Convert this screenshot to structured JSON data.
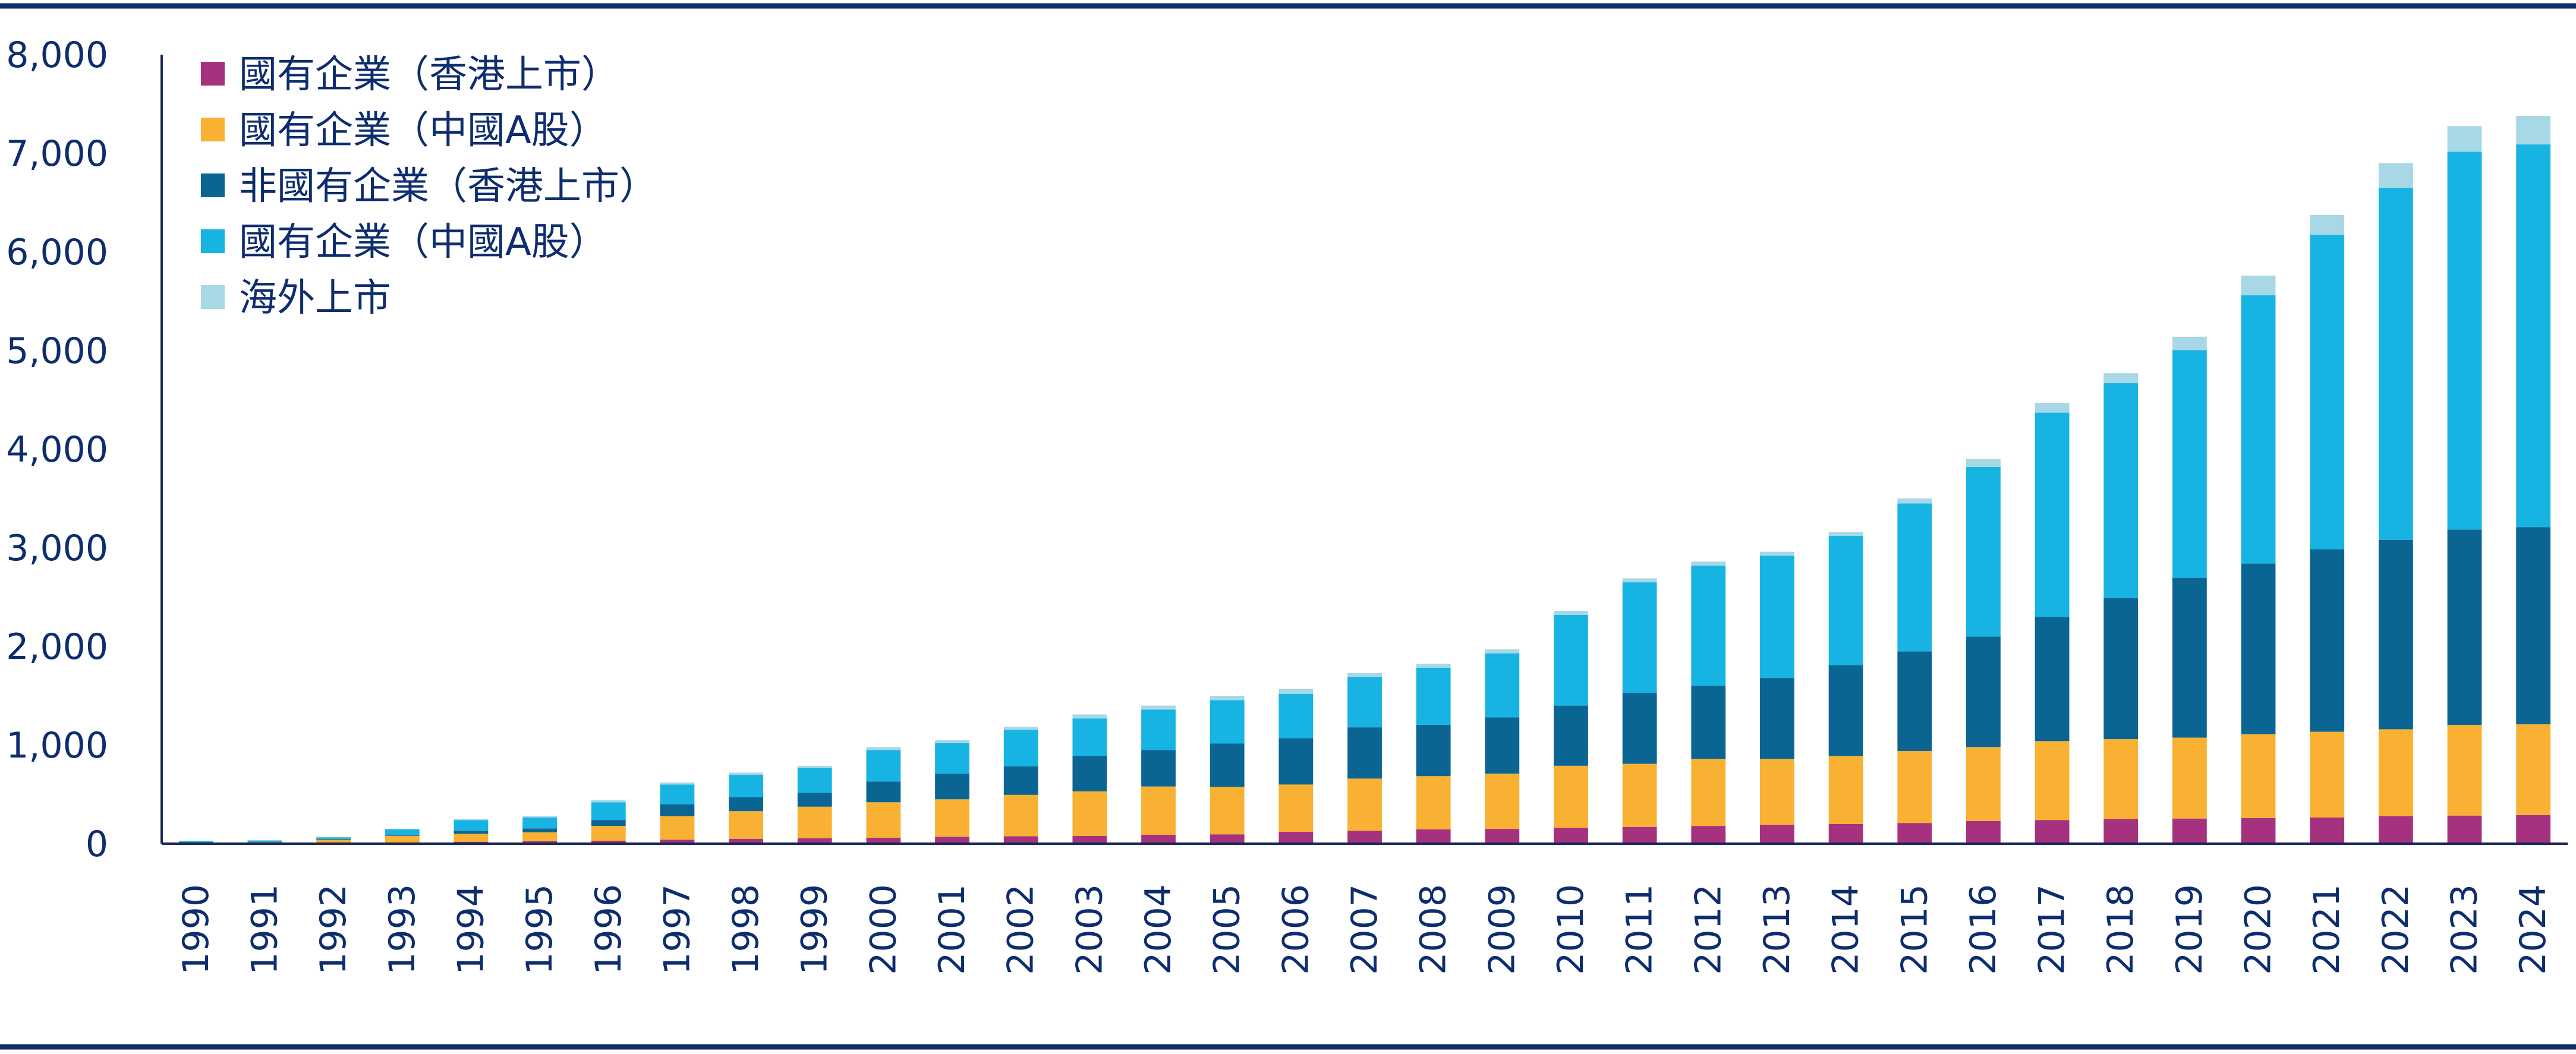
{
  "chart_data": {
    "type": "bar",
    "stacked": true,
    "title": "",
    "xlabel": "",
    "ylabel": "",
    "ylim": [
      0,
      8000
    ],
    "yticks": [
      0,
      1000,
      2000,
      3000,
      4000,
      5000,
      6000,
      7000,
      8000
    ],
    "ytick_labels": [
      "0",
      "1,000",
      "2,000",
      "3,000",
      "4,000",
      "5,000",
      "6,000",
      "7,000",
      "8,000"
    ],
    "grid": false,
    "legend_position": "top-left",
    "categories": [
      "1990",
      "1991",
      "1992",
      "1993",
      "1994",
      "1995",
      "1996",
      "1997",
      "1998",
      "1999",
      "2000",
      "2001",
      "2002",
      "2003",
      "2004",
      "2005",
      "2006",
      "2007",
      "2008",
      "2009",
      "2010",
      "2011",
      "2012",
      "2013",
      "2014",
      "2015",
      "2016",
      "2017",
      "2018",
      "2019",
      "2020",
      "2021",
      "2022",
      "2023",
      "2024"
    ],
    "series": [
      {
        "name": "國有企業（香港上市）",
        "color": "#a6327f",
        "values": [
          2,
          3,
          5,
          10,
          20,
          25,
          30,
          40,
          50,
          55,
          60,
          70,
          75,
          80,
          90,
          95,
          120,
          130,
          145,
          150,
          160,
          170,
          180,
          190,
          200,
          210,
          230,
          240,
          250,
          255,
          260,
          265,
          280,
          285,
          290
        ]
      },
      {
        "name": "國有企業（中國A股）",
        "color": "#f8b133",
        "values": [
          8,
          12,
          35,
          70,
          80,
          90,
          150,
          240,
          280,
          320,
          360,
          380,
          420,
          450,
          490,
          480,
          480,
          530,
          540,
          560,
          630,
          640,
          680,
          670,
          690,
          730,
          750,
          800,
          810,
          820,
          850,
          870,
          880,
          920,
          920
        ]
      },
      {
        "name": "非國有企業（香港上市）",
        "color": "#0b6593",
        "values": [
          5,
          5,
          10,
          10,
          30,
          40,
          60,
          120,
          140,
          140,
          210,
          260,
          290,
          360,
          370,
          440,
          470,
          520,
          520,
          570,
          610,
          720,
          740,
          820,
          920,
          1010,
          1120,
          1260,
          1430,
          1620,
          1730,
          1850,
          1920,
          1980,
          2000
        ]
      },
      {
        "name": "國有企業（中國A股）",
        "color": "#17b4e3",
        "values": [
          10,
          12,
          15,
          55,
          110,
          110,
          180,
          200,
          230,
          250,
          320,
          310,
          370,
          380,
          410,
          440,
          450,
          510,
          580,
          650,
          920,
          1120,
          1220,
          1240,
          1310,
          1500,
          1720,
          2070,
          2180,
          2310,
          2720,
          3190,
          3570,
          3830,
          3880
        ]
      },
      {
        "name": "海外上市",
        "color": "#a8d7e5",
        "values": [
          5,
          5,
          5,
          5,
          10,
          15,
          20,
          20,
          20,
          25,
          30,
          30,
          30,
          40,
          40,
          45,
          50,
          40,
          40,
          40,
          40,
          40,
          40,
          40,
          40,
          50,
          80,
          100,
          100,
          135,
          200,
          200,
          250,
          260,
          290
        ]
      }
    ]
  }
}
